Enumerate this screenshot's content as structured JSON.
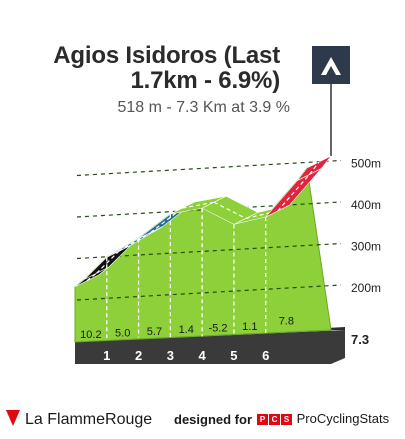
{
  "title": "Agios Isidoros (Last 1.7km - 6.9%)",
  "title_lines": [
    "Agios Isidoros (Last",
    "1.7km - 6.9%)"
  ],
  "subtitle": "518 m - 7.3 Km at 3.9 %",
  "footer": {
    "brand": "La FlammeRouge",
    "designed_for": "designed for",
    "pcs_letters": [
      "P",
      "C",
      "S"
    ],
    "pcs_name": "ProCyclingStats"
  },
  "icons": {
    "climb_badge": "mountain-icon",
    "brand_mark": "flamme-rouge-icon"
  },
  "colors": {
    "easy": "#8dd03a",
    "moderate": "#1e6e96",
    "hard": "#e0243b",
    "steep": "#111111",
    "base": "#3a3a3a"
  },
  "chart_data": {
    "type": "area",
    "xlabel": "",
    "ylabel": "",
    "x": [
      0,
      0.3,
      1,
      2,
      3,
      4,
      5,
      6,
      7,
      7.3
    ],
    "elevation": [
      232,
      250,
      303,
      348,
      407,
      421,
      382,
      400,
      488,
      518
    ],
    "km_markers": [
      "1",
      "2",
      "3",
      "4",
      "5",
      "6"
    ],
    "km_marker_x": [
      1,
      2,
      3,
      4,
      5,
      6
    ],
    "segment_gradients": [
      "10.2",
      "5.0",
      "5.7",
      "1.4",
      "-5.2",
      "1.1",
      "7.8"
    ],
    "segment_colors": [
      "steep",
      "moderate",
      "moderate",
      "easy",
      "easy",
      "easy",
      "hard"
    ],
    "y_ticks": [
      200,
      300,
      400,
      500
    ],
    "y_tick_labels": [
      "200m",
      "300m",
      "400m",
      "500m"
    ],
    "ylim": [
      0,
      518
    ],
    "xlim": [
      0,
      7.3
    ],
    "distance_label": "7.3",
    "grid": true
  }
}
